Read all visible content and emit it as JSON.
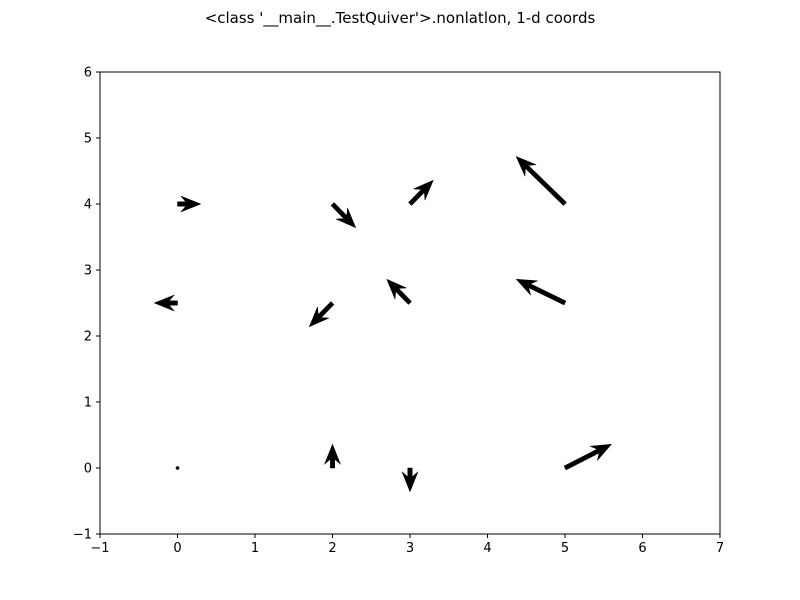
{
  "chart_data": {
    "type": "quiver",
    "title": "<class '__main__.TestQuiver'>.nonlatlon, 1-d coords",
    "xlabel": "",
    "ylabel": "",
    "xlim": [
      -1,
      7
    ],
    "ylim": [
      -1,
      6
    ],
    "xticks": [
      -1,
      0,
      1,
      2,
      3,
      4,
      5,
      6,
      7
    ],
    "yticks": [
      -1,
      0,
      1,
      2,
      3,
      4,
      5,
      6
    ],
    "xtick_labels": [
      "−1",
      "0",
      "1",
      "2",
      "3",
      "4",
      "5",
      "6",
      "7"
    ],
    "ytick_labels": [
      "−1",
      "0",
      "1",
      "2",
      "3",
      "4",
      "5",
      "6"
    ],
    "grid": false,
    "arrow_color": "#000000",
    "arrows": [
      {
        "x": 0,
        "y": 0,
        "u": 0.0,
        "v": 0.0
      },
      {
        "x": 2,
        "y": 0,
        "u": 0.0,
        "v": 0.36
      },
      {
        "x": 3,
        "y": 0,
        "u": 0.0,
        "v": -0.36
      },
      {
        "x": 5,
        "y": 0,
        "u": 0.6,
        "v": 0.36
      },
      {
        "x": 0,
        "y": 2.5,
        "u": -0.3,
        "v": 0.0
      },
      {
        "x": 2,
        "y": 2.5,
        "u": -0.3,
        "v": -0.36
      },
      {
        "x": 3,
        "y": 2.5,
        "u": -0.3,
        "v": 0.36
      },
      {
        "x": 5,
        "y": 2.5,
        "u": -0.63,
        "v": 0.36
      },
      {
        "x": 0,
        "y": 4,
        "u": 0.3,
        "v": 0.0
      },
      {
        "x": 2,
        "y": 4,
        "u": 0.3,
        "v": -0.36
      },
      {
        "x": 3,
        "y": 4,
        "u": 0.3,
        "v": 0.36
      },
      {
        "x": 5,
        "y": 4,
        "u": -0.63,
        "v": 0.72
      }
    ]
  }
}
